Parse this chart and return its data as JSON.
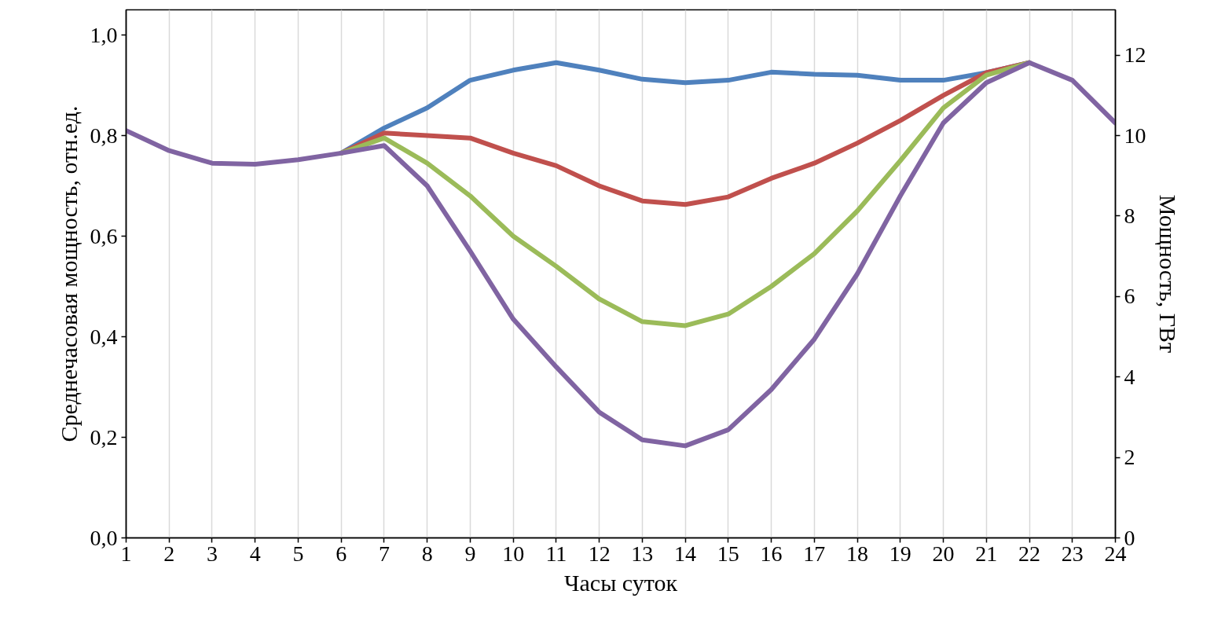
{
  "chart_data": {
    "type": "line",
    "xlabel": "Часы суток",
    "ylabel": "Среднечасовая мощность, отн.ед.",
    "y2label": "Мощность, ГВт",
    "x": [
      1,
      2,
      3,
      4,
      5,
      6,
      7,
      8,
      9,
      10,
      11,
      12,
      13,
      14,
      15,
      16,
      17,
      18,
      19,
      20,
      21,
      22,
      23,
      24
    ],
    "series": [
      {
        "color": "#4f81bd",
        "values": [
          null,
          null,
          null,
          null,
          null,
          0.765,
          0.815,
          0.855,
          0.91,
          0.93,
          0.945,
          0.93,
          0.912,
          0.905,
          0.91,
          0.926,
          0.922,
          0.92,
          0.91,
          0.91,
          0.925,
          0.945,
          null,
          null
        ]
      },
      {
        "color": "#c0504d",
        "values": [
          null,
          null,
          null,
          null,
          null,
          0.765,
          0.805,
          0.8,
          0.795,
          0.765,
          0.74,
          0.7,
          0.67,
          0.663,
          0.678,
          0.715,
          0.745,
          0.785,
          0.83,
          0.88,
          0.925,
          0.945,
          null,
          null
        ]
      },
      {
        "color": "#9bbb59",
        "values": [
          null,
          null,
          null,
          null,
          null,
          0.765,
          0.795,
          0.745,
          0.68,
          0.6,
          0.54,
          0.475,
          0.43,
          0.422,
          0.445,
          0.5,
          0.565,
          0.65,
          0.75,
          0.855,
          0.92,
          0.945,
          null,
          null
        ]
      },
      {
        "color": "#8064a2",
        "values": [
          0.81,
          0.77,
          0.745,
          0.743,
          0.752,
          0.765,
          0.78,
          0.7,
          0.57,
          0.435,
          0.34,
          0.25,
          0.195,
          0.183,
          0.215,
          0.295,
          0.395,
          0.525,
          0.68,
          0.825,
          0.905,
          0.945,
          0.91,
          0.825
        ]
      }
    ],
    "xlim": [
      1,
      24
    ],
    "xticks": [
      1,
      2,
      3,
      4,
      5,
      6,
      7,
      8,
      9,
      10,
      11,
      12,
      13,
      14,
      15,
      16,
      17,
      18,
      19,
      20,
      21,
      22,
      23,
      24
    ],
    "ylim": [
      0,
      1.05
    ],
    "yticks": [
      {
        "value": 0,
        "label": "0,0"
      },
      {
        "value": 0.2,
        "label": "0,2"
      },
      {
        "value": 0.4,
        "label": "0,4"
      },
      {
        "value": 0.6,
        "label": "0,6"
      },
      {
        "value": 0.8,
        "label": "0,8"
      },
      {
        "value": 1.0,
        "label": "1,0"
      }
    ],
    "y2lim": [
      0,
      13.125
    ],
    "y2ticks": [
      0,
      2,
      4,
      6,
      8,
      10,
      12
    ],
    "grid": "x",
    "marker": "none",
    "line_style": "solid"
  }
}
